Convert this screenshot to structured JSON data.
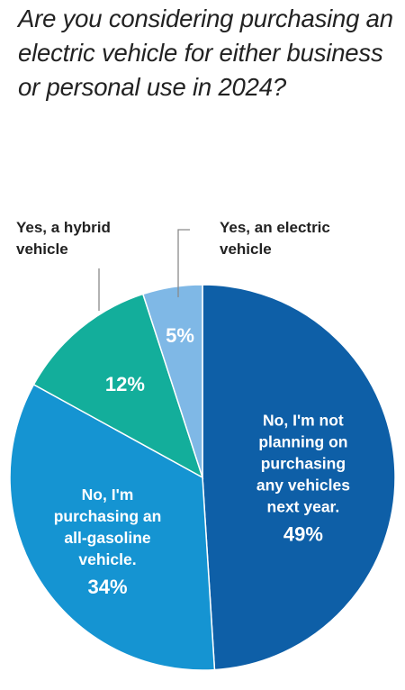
{
  "title_lines": [
    "Are you considering purchasing an",
    "electric vehicle for either business",
    "or personal use in 2024?"
  ],
  "chart_data": {
    "type": "pie",
    "title": "Are you considering purchasing an electric vehicle for either business or personal use in 2024?",
    "slices": [
      {
        "label_lines": [
          "No, I'm not",
          "planning on",
          "purchasing",
          "any vehicles",
          "next year."
        ],
        "value": 49,
        "value_label": "49%",
        "color": "#0e5fa7",
        "label_position": "inside"
      },
      {
        "label_lines": [
          "No, I'm",
          "purchasing an",
          "all-gasoline",
          "vehicle."
        ],
        "value": 34,
        "value_label": "34%",
        "color": "#1594d2",
        "label_position": "inside"
      },
      {
        "label_lines": [
          "Yes, a hybrid",
          "vehicle"
        ],
        "value": 12,
        "value_label": "12%",
        "color": "#13ae9b",
        "label_position": "outside"
      },
      {
        "label_lines": [
          "Yes, an electric",
          "vehicle"
        ],
        "value": 5,
        "value_label": "5%",
        "color": "#7fb8e6",
        "label_position": "outside"
      }
    ]
  }
}
